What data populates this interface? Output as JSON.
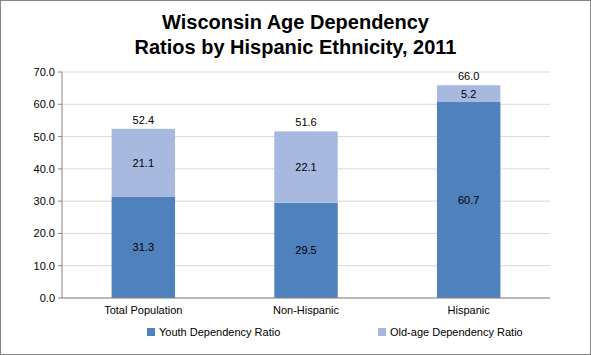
{
  "chart_data": {
    "type": "bar",
    "title": "Wisconsin Age Dependency Ratios by Hispanic Ethnicity, 2011",
    "categories": [
      "Total Population",
      "Non-Hispanic",
      "Hispanic"
    ],
    "series": [
      {
        "name": "Youth Dependency Ratio",
        "color": "#4f81bd",
        "values": [
          31.3,
          29.5,
          60.7
        ]
      },
      {
        "name": "Old-age Dependency Ratio",
        "color": "#a7b9de",
        "values": [
          21.1,
          22.1,
          5.2
        ]
      }
    ],
    "totals": [
      52.4,
      51.6,
      66
    ],
    "total_labels": [
      "52.4",
      "51.6",
      "66.0"
    ],
    "ylim": [
      0,
      70
    ],
    "yticks": [
      {
        "value": 0,
        "label": "0.0"
      },
      {
        "value": 10,
        "label": "10.0"
      },
      {
        "value": 20,
        "label": "20.0"
      },
      {
        "value": 30,
        "label": "30.0"
      },
      {
        "value": 40,
        "label": "40.0"
      },
      {
        "value": 50,
        "label": "50.0"
      },
      {
        "value": 60,
        "label": "60.0"
      },
      {
        "value": 70,
        "label": "70.0"
      }
    ],
    "grid": true,
    "stacked": true,
    "data_labels": true,
    "legend": "bottom"
  }
}
